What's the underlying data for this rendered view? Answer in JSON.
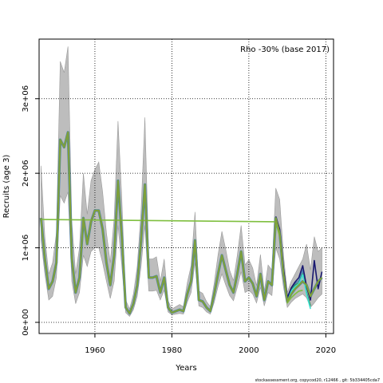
{
  "chart_data": {
    "type": "line",
    "title": "",
    "annotation": "Rho -30% (base 2017)",
    "xlabel": "Years",
    "ylabel": "Recruits (age 3)",
    "xlim": [
      1945.5,
      2022
    ],
    "ylim": [
      -150000,
      3800000
    ],
    "x_ticks": [
      1960,
      1980,
      2000,
      2020
    ],
    "x_tick_labels": [
      "1960",
      "1980",
      "2000",
      "2020"
    ],
    "y_ticks": [
      0,
      1000000,
      2000000,
      3000000
    ],
    "y_tick_labels": [
      "0e+00",
      "1e+06",
      "2e+06",
      "3e+06"
    ],
    "grid": "dotted",
    "footer": "stockassessment.org, copycod20, r12466 , git: 5b334405cda7",
    "years": [
      1946,
      1947,
      1948,
      1949,
      1950,
      1951,
      1952,
      1953,
      1954,
      1955,
      1956,
      1957,
      1958,
      1959,
      1960,
      1961,
      1962,
      1963,
      1964,
      1965,
      1966,
      1967,
      1968,
      1969,
      1970,
      1971,
      1972,
      1973,
      1974,
      1975,
      1976,
      1977,
      1978,
      1979,
      1980,
      1981,
      1982,
      1983,
      1984,
      1985,
      1986,
      1987,
      1988,
      1989,
      1990,
      1991,
      1992,
      1993,
      1994,
      1995,
      1996,
      1997,
      1998,
      1999,
      2000,
      2001,
      2002,
      2003,
      2004,
      2005,
      2006,
      2007,
      2008,
      2009,
      2010,
      2011,
      2012,
      2013,
      2014,
      2015,
      2016,
      2017,
      2018,
      2019
    ],
    "base_estimate": [
      1400000,
      850000,
      450000,
      550000,
      800000,
      2450000,
      2350000,
      2550000,
      850000,
      400000,
      600000,
      1400000,
      1050000,
      1350000,
      1500000,
      1500000,
      1250000,
      800000,
      500000,
      900000,
      1900000,
      1150000,
      200000,
      120000,
      250000,
      500000,
      1100000,
      1850000,
      600000,
      600000,
      620000,
      400000,
      600000,
      200000,
      130000,
      150000,
      170000,
      150000,
      380000,
      550000,
      1100000,
      300000,
      280000,
      200000,
      150000,
      380000,
      650000,
      900000,
      700000,
      500000,
      400000,
      650000,
      950000,
      550000,
      600000,
      520000,
      350000,
      650000,
      300000,
      550000,
      500000,
      1400000,
      1200000,
      650000,
      280000,
      380000,
      450000,
      500000,
      550000,
      500000,
      350000,
      450000,
      550000,
      600000
    ],
    "ci_lower": [
      1100000,
      650000,
      300000,
      350000,
      600000,
      1700000,
      1600000,
      1750000,
      550000,
      250000,
      400000,
      900000,
      750000,
      950000,
      1000000,
      1000000,
      800000,
      550000,
      320000,
      550000,
      1300000,
      750000,
      130000,
      80000,
      170000,
      350000,
      750000,
      1300000,
      420000,
      420000,
      430000,
      300000,
      430000,
      140000,
      100000,
      110000,
      120000,
      110000,
      270000,
      400000,
      800000,
      220000,
      200000,
      140000,
      110000,
      270000,
      480000,
      650000,
      500000,
      360000,
      290000,
      470000,
      680000,
      400000,
      430000,
      380000,
      260000,
      470000,
      220000,
      400000,
      360000,
      1000000,
      850000,
      470000,
      200000,
      270000,
      320000,
      350000,
      380000,
      330000,
      200000,
      260000,
      330000,
      380000
    ],
    "ci_upper": [
      2100000,
      1150000,
      650000,
      800000,
      1200000,
      3500000,
      3350000,
      3700000,
      1350000,
      650000,
      1000000,
      2000000,
      1450000,
      1900000,
      2050000,
      2150000,
      1750000,
      1200000,
      800000,
      1400000,
      2700000,
      1650000,
      300000,
      180000,
      380000,
      750000,
      1500000,
      2750000,
      850000,
      850000,
      880000,
      550000,
      850000,
      290000,
      180000,
      210000,
      240000,
      210000,
      530000,
      760000,
      1480000,
      420000,
      390000,
      280000,
      210000,
      530000,
      910000,
      1220000,
      980000,
      700000,
      560000,
      900000,
      1300000,
      770000,
      840000,
      730000,
      490000,
      910000,
      420000,
      770000,
      700000,
      1800000,
      1650000,
      900000,
      400000,
      550000,
      650000,
      750000,
      850000,
      1050000,
      700000,
      1150000,
      950000,
      1000000
    ],
    "series": [
      {
        "color": "#7fbf3f",
        "years": [
          1946,
          2007,
          2008,
          2009,
          2010,
          2011,
          2012,
          2013,
          2014
        ],
        "values": [
          1380000,
          1350000,
          1150000,
          650000,
          260000,
          330000,
          380000,
          420000,
          430000
        ]
      },
      {
        "color": "#4682b4",
        "years": [
          2007,
          2008,
          2009,
          2010,
          2011,
          2012,
          2013,
          2014,
          2015
        ],
        "values": [
          1380000,
          1200000,
          700000,
          320000,
          440000,
          520000,
          560000,
          700000,
          450000
        ]
      },
      {
        "color": "#2e8b57",
        "years": [
          2007,
          2008,
          2009,
          2010,
          2011,
          2012,
          2013,
          2014,
          2015,
          2016
        ],
        "values": [
          1400000,
          1220000,
          700000,
          300000,
          430000,
          500000,
          530000,
          650000,
          400000,
          220000
        ]
      },
      {
        "color": "#40e0d0",
        "years": [
          2007,
          2008,
          2009,
          2010,
          2011,
          2012,
          2013,
          2014,
          2015,
          2016
        ],
        "values": [
          1400000,
          1200000,
          680000,
          290000,
          420000,
          480000,
          520000,
          640000,
          380000,
          180000
        ]
      },
      {
        "color": "#191970",
        "years": [
          2007,
          2008,
          2009,
          2010,
          2011,
          2012,
          2013,
          2014,
          2015,
          2016,
          2017,
          2018,
          2019
        ],
        "values": [
          1420000,
          1250000,
          720000,
          330000,
          460000,
          540000,
          600000,
          760000,
          480000,
          300000,
          830000,
          450000,
          680000
        ]
      }
    ]
  }
}
